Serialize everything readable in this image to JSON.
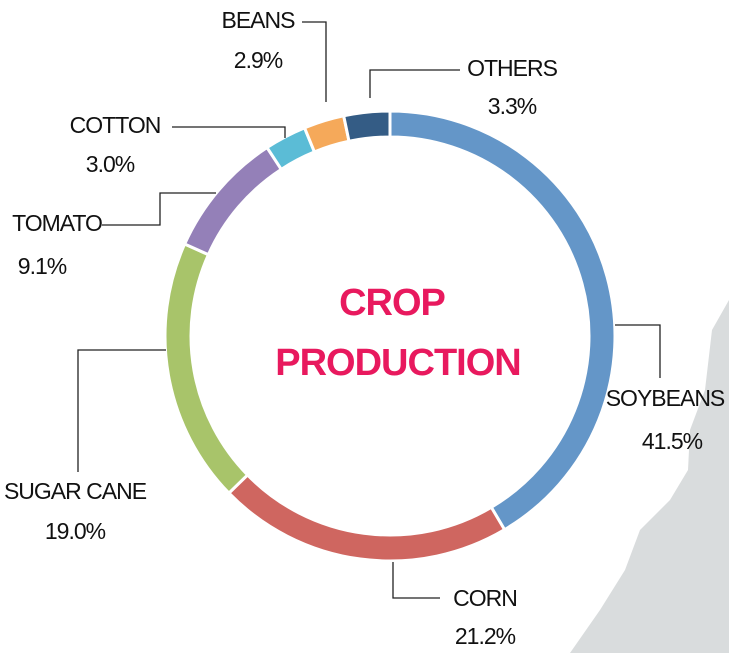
{
  "chart_data": {
    "type": "donut",
    "title": [
      "CROP",
      "PRODUCTION"
    ],
    "categories": [
      "SOYBEANS",
      "CORN",
      "SUGAR CANE",
      "TOMATO",
      "COTTON",
      "BEANS",
      "OTHERS"
    ],
    "values": [
      41.5,
      21.2,
      19.0,
      9.1,
      3.0,
      2.9,
      3.3
    ],
    "value_labels": [
      "41.5%",
      "21.2%",
      "19.0%",
      "9.1%",
      "3.0%",
      "2.9%",
      "3.3%"
    ],
    "colors": [
      "#6496c8",
      "#cf6660",
      "#a8c46a",
      "#9480b8",
      "#5bbcd6",
      "#f5a95a",
      "#345c85"
    ]
  }
}
